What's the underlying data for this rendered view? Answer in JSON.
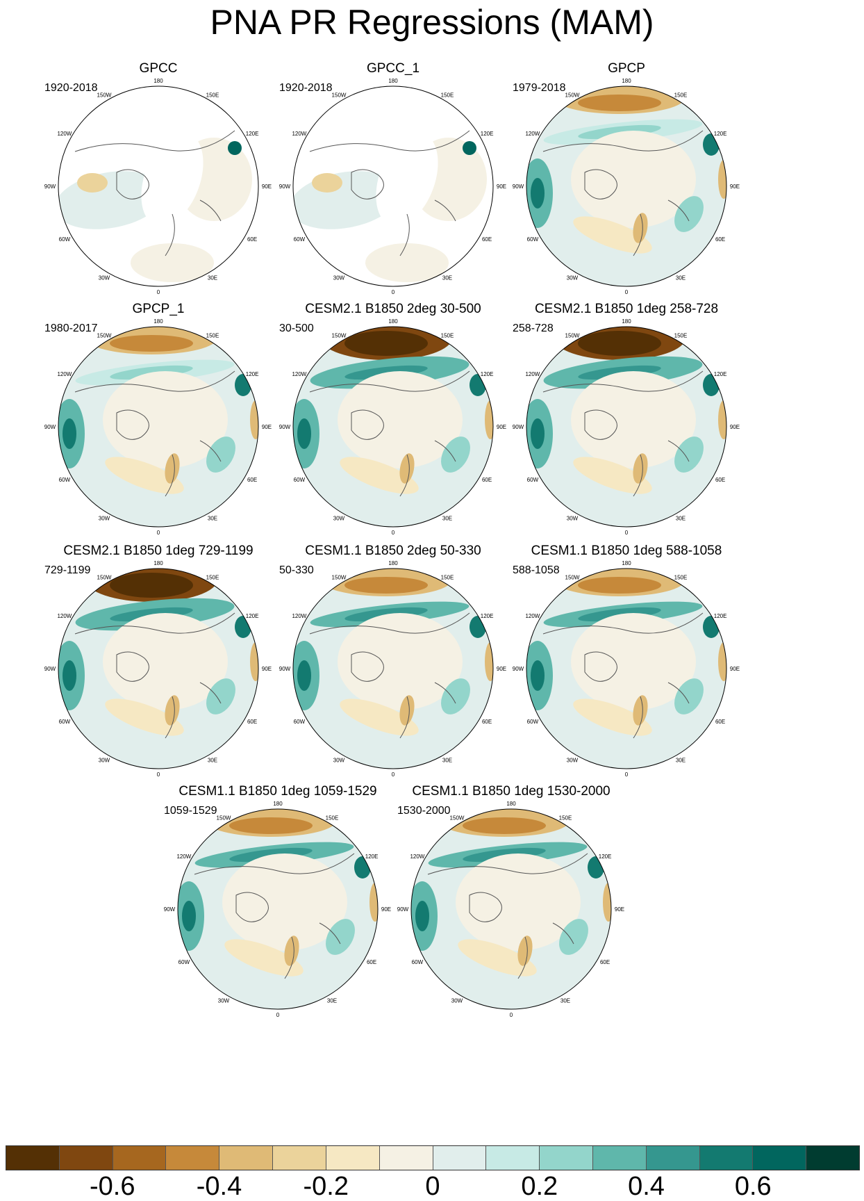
{
  "title": "PNA PR Regressions (MAM)",
  "panels": [
    {
      "title": "GPCC",
      "period": "1920-2018",
      "style": "gpcc"
    },
    {
      "title": "GPCC_1",
      "period": "1920-2018",
      "style": "gpcc"
    },
    {
      "title": "GPCP",
      "period": "1979-2018",
      "style": "gpcp"
    },
    {
      "title": "GPCP_1",
      "period": "1980-2017",
      "style": "gpcp"
    },
    {
      "title": "CESM2.1 B1850 2deg 30-500",
      "period": "30-500",
      "style": "model-strong"
    },
    {
      "title": "CESM2.1 B1850 1deg 258-728",
      "period": "258-728",
      "style": "model-strong"
    },
    {
      "title": "CESM2.1 B1850 1deg 729-1199",
      "period": "729-1199",
      "style": "model-strong"
    },
    {
      "title": "CESM1.1 B1850 2deg 50-330",
      "period": "50-330",
      "style": "model"
    },
    {
      "title": "CESM1.1 B1850 1deg 588-1058",
      "period": "588-1058",
      "style": "model"
    },
    {
      "title": "CESM1.1 B1850 1deg 1059-1529",
      "period": "1059-1529",
      "style": "model"
    },
    {
      "title": "CESM1.1 B1850 1deg 1530-2000",
      "period": "1530-2000",
      "style": "model"
    }
  ],
  "longitude_labels": [
    "180",
    "150E",
    "120E",
    "90E",
    "60E",
    "30E",
    "0",
    "30W",
    "60W",
    "90W",
    "120W",
    "150W"
  ],
  "colorbar": {
    "colors": [
      "#543005",
      "#7f4710",
      "#a6671f",
      "#c6893a",
      "#dfba76",
      "#ebd39b",
      "#f6e8c3",
      "#f5f1e4",
      "#e1eeec",
      "#c7eae5",
      "#93d5cb",
      "#5fb7ab",
      "#35978f",
      "#137a70",
      "#01665e",
      "#003c30"
    ],
    "tick_labels": [
      "-0.6",
      "-0.4",
      "-0.2",
      "0",
      "0.2",
      "0.4",
      "0.6"
    ],
    "tick_values": [
      -0.6,
      -0.4,
      -0.2,
      0,
      0.2,
      0.4,
      0.6
    ]
  }
}
